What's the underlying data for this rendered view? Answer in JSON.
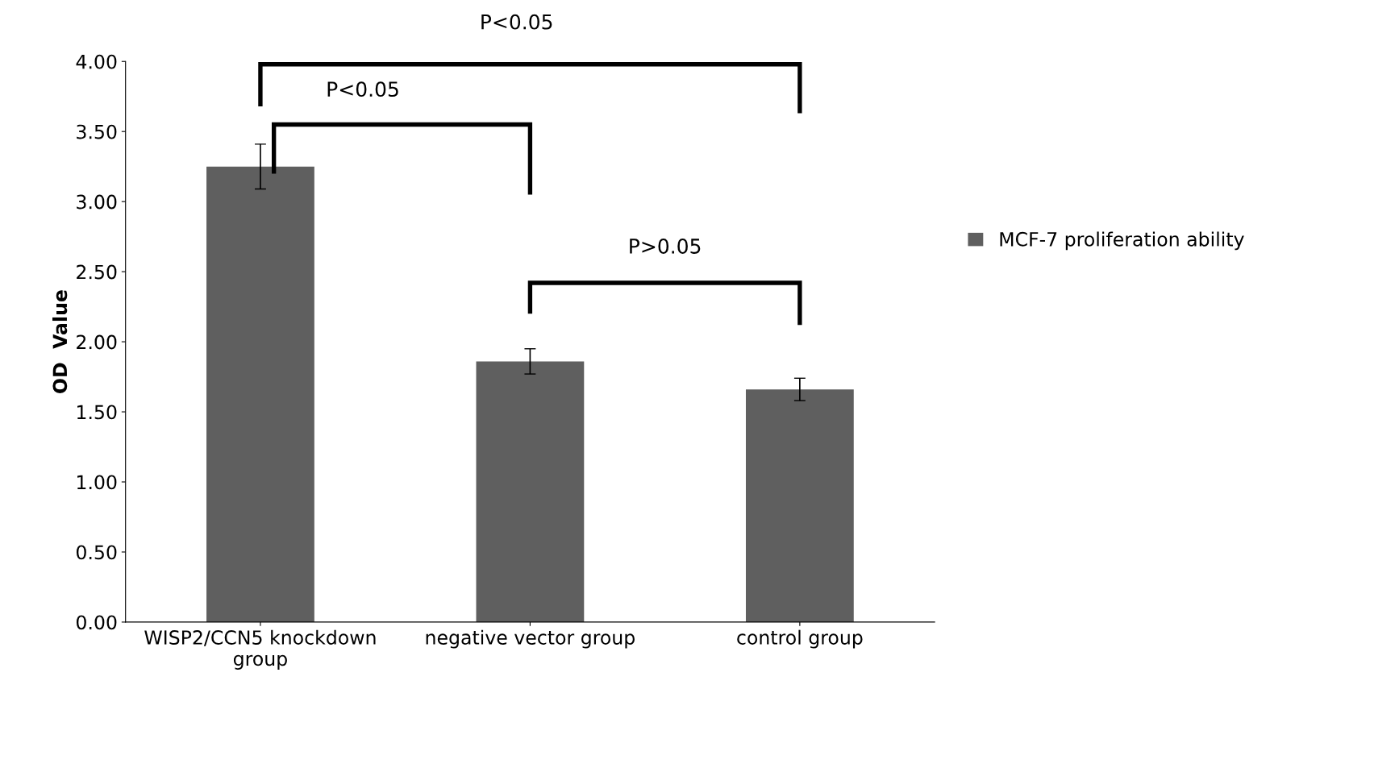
{
  "chart_data": {
    "type": "bar",
    "ylabel": "OD  Value",
    "categories": [
      "WISP2/CCN5 knockdown\ngroup",
      "negative vector group",
      "control group"
    ],
    "series": [
      {
        "name": "MCF-7 proliferation ability",
        "color": "#5f5f5f",
        "values": [
          3.25,
          1.86,
          1.66
        ],
        "errors": [
          0.16,
          0.09,
          0.08
        ]
      }
    ],
    "ylim": [
      0,
      4
    ],
    "yticks": [
      {
        "value": 0,
        "label": "0.00"
      },
      {
        "value": 0.5,
        "label": "0.50"
      },
      {
        "value": 1,
        "label": "1.00"
      },
      {
        "value": 1.5,
        "label": "1.50"
      },
      {
        "value": 2,
        "label": "2.00"
      },
      {
        "value": 2.5,
        "label": "2.50"
      },
      {
        "value": 3,
        "label": "3.00"
      },
      {
        "value": 3.5,
        "label": "3.50"
      },
      {
        "value": 4,
        "label": "4.00"
      }
    ],
    "annotations": [
      "P<0.05",
      "P<0.05",
      "P>0.05"
    ],
    "legend": "right",
    "grid": false
  }
}
